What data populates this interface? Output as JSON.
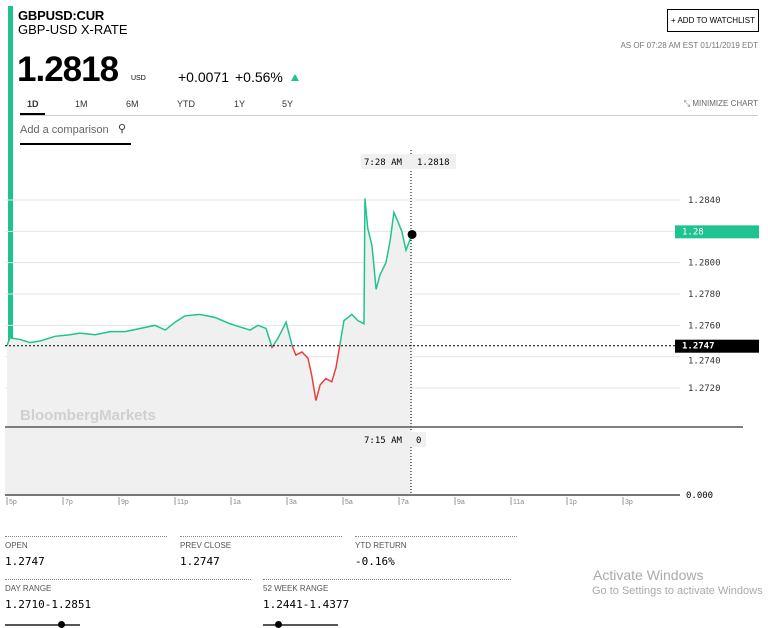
{
  "header": {
    "ticker": "GBPUSD:CUR",
    "name": "GBP-USD X-RATE",
    "price": "1.2818",
    "currency": "USD",
    "change": "+0.0071",
    "change_pct": "+0.56%",
    "direction": "up",
    "watchlist_label": "+ ADD TO WATCHLIST",
    "as_of": "AS OF 07:28 AM EST 01/11/2019 EDT"
  },
  "tabs": [
    {
      "label": "1D",
      "active": true
    },
    {
      "label": "1M"
    },
    {
      "label": "6M"
    },
    {
      "label": "YTD"
    },
    {
      "label": "1Y"
    },
    {
      "label": "5Y"
    }
  ],
  "minimize_label": "MINIMIZE CHART",
  "comparison": {
    "placeholder": "Add a comparison",
    "icon": "search-icon"
  },
  "colors": {
    "accent": "#1fc391",
    "down": "#e8403a",
    "fill": "#f0f0f0"
  },
  "chart_data": {
    "type": "line",
    "watermark": "BloombergMarkets",
    "y_ticks": [
      "1.2840",
      "1.2800",
      "1.2780",
      "1.2760",
      "1.2740",
      "1.2720"
    ],
    "ylim": [
      1.27,
      1.286
    ],
    "x_ticks": [
      "5p",
      "7p",
      "9p",
      "11p",
      "1a",
      "3a",
      "5a",
      "7a",
      "9a",
      "11a",
      "1p",
      "3p"
    ],
    "prev_close": 1.2747,
    "prev_close_label": "1.2747",
    "last_tag": "1.28",
    "crosshair": {
      "time_label": "7:28 AM",
      "value_label": "1.2818",
      "volume_time_label": "7:15 AM",
      "volume_value_label": "0"
    },
    "volume_axis_label": "0.000",
    "points": [
      [
        "17:00",
        1.2747
      ],
      [
        "17:06",
        1.2752
      ],
      [
        "17:28",
        1.2751
      ],
      [
        "17:49",
        1.2749
      ],
      [
        "18:11",
        1.275
      ],
      [
        "18:43",
        1.2753
      ],
      [
        "19:15",
        1.2754
      ],
      [
        "19:36",
        1.2755
      ],
      [
        "20:09",
        1.2754
      ],
      [
        "20:41",
        1.2756
      ],
      [
        "21:13",
        1.2756
      ],
      [
        "21:45",
        1.2758
      ],
      [
        "22:17",
        1.276
      ],
      [
        "22:39",
        1.2757
      ],
      [
        "23:00",
        1.2762
      ],
      [
        "23:21",
        1.2766
      ],
      [
        "23:53",
        1.2767
      ],
      [
        "00:26",
        1.2765
      ],
      [
        "00:58",
        1.2761
      ],
      [
        "01:19",
        1.2759
      ],
      [
        "01:41",
        1.2757
      ],
      [
        "01:58",
        1.276
      ],
      [
        "02:15",
        1.2758
      ],
      [
        "02:28",
        1.2746
      ],
      [
        "02:41",
        1.2752
      ],
      [
        "02:58",
        1.2762
      ],
      [
        "03:11",
        1.2747
      ],
      [
        "03:19",
        1.2741
      ],
      [
        "03:32",
        1.2743
      ],
      [
        "03:45",
        1.2739
      ],
      [
        "03:53",
        1.2728
      ],
      [
        "04:02",
        1.2712
      ],
      [
        "04:11",
        1.2722
      ],
      [
        "04:23",
        1.2726
      ],
      [
        "04:36",
        1.2724
      ],
      [
        "04:45",
        1.2733
      ],
      [
        "04:53",
        1.2747
      ],
      [
        "05:02",
        1.2763
      ],
      [
        "05:19",
        1.2767
      ],
      [
        "05:32",
        1.2763
      ],
      [
        "05:45",
        1.2761
      ],
      [
        "05:47",
        1.2841
      ],
      [
        "05:53",
        1.2822
      ],
      [
        "06:02",
        1.2811
      ],
      [
        "06:11",
        1.2783
      ],
      [
        "06:19",
        1.2792
      ],
      [
        "06:32",
        1.28
      ],
      [
        "06:41",
        1.2814
      ],
      [
        "06:49",
        1.2832
      ],
      [
        "06:58",
        1.2826
      ],
      [
        "07:06",
        1.282
      ],
      [
        "07:15",
        1.2808
      ],
      [
        "07:28",
        1.2818
      ]
    ]
  },
  "stats": {
    "open": {
      "label": "OPEN",
      "value": "1.2747"
    },
    "prev_close": {
      "label": "PREV CLOSE",
      "value": "1.2747"
    },
    "ytd_return": {
      "label": "YTD RETURN",
      "value": "-0.16%"
    },
    "day_range": {
      "label": "DAY RANGE",
      "value": "1.2710-1.2851",
      "position": 0.75
    },
    "week52_range": {
      "label": "52 WEEK RANGE",
      "value": "1.2441-1.4377",
      "position": 0.2
    }
  },
  "watermark_os": {
    "title": "Activate Windows",
    "subtitle": "Go to Settings to activate Windows"
  }
}
